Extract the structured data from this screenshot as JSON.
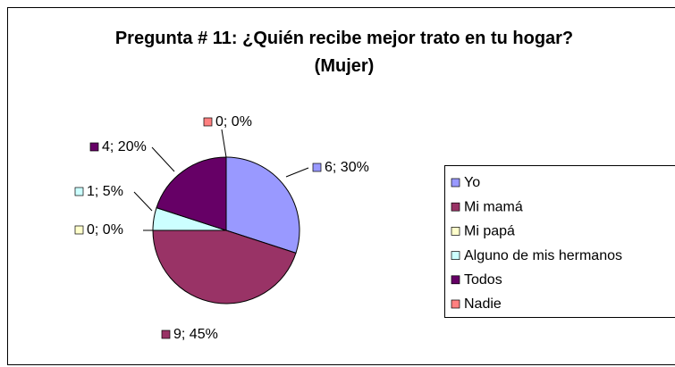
{
  "chart_data": {
    "type": "pie",
    "title": "Pregunta # 11: ¿Quién recibe mejor trato en tu hogar? (Mujer)",
    "categories": [
      "Yo",
      "Mi mamá",
      "Mi papá",
      "Alguno de mis hermanos",
      "Todos",
      "Nadie"
    ],
    "values": [
      6,
      9,
      0,
      1,
      4,
      0
    ],
    "value_labels": [
      "6; 30%",
      "9; 45%",
      "0; 0%",
      "1; 5%",
      "4; 20%",
      "0; 0%"
    ],
    "colors": [
      "#9999ff",
      "#993366",
      "#ffffcc",
      "#ccffff",
      "#660066",
      "#ff8080"
    ],
    "legend": "right"
  }
}
